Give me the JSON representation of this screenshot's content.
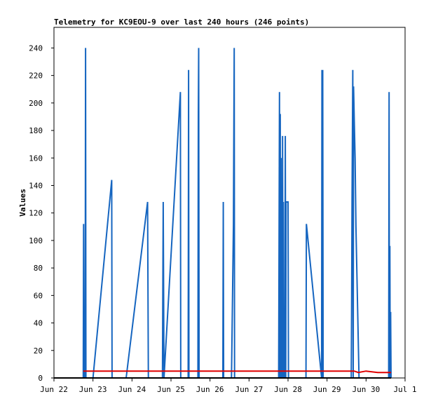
{
  "chart_data": {
    "type": "line",
    "title": "Telemetry for KC9EOU-9 over last 240 hours (246 points)",
    "xlabel": "",
    "ylabel": "Values",
    "xlim": [
      "Jun 22",
      "Jul 1"
    ],
    "ylim": [
      0,
      255
    ],
    "x_ticks": [
      "Jun 22",
      "Jun 23",
      "Jun 24",
      "Jun 25",
      "Jun 26",
      "Jun 27",
      "Jun 28",
      "Jun 29",
      "Jun 30",
      "Jul 1"
    ],
    "y_ticks": [
      0,
      20,
      40,
      60,
      80,
      100,
      120,
      140,
      160,
      180,
      200,
      220,
      240
    ],
    "grid": false,
    "series": [
      {
        "color": "#1565c0",
        "points": [
          [
            0.75,
            0
          ],
          [
            0.76,
            112
          ],
          [
            0.77,
            0
          ],
          [
            0.8,
            0
          ],
          [
            0.81,
            240
          ],
          [
            0.82,
            0
          ],
          [
            1.0,
            0
          ],
          [
            1.48,
            144
          ],
          [
            1.49,
            0
          ],
          [
            1.85,
            0
          ],
          [
            2.4,
            128
          ],
          [
            2.42,
            0
          ],
          [
            2.78,
            0
          ],
          [
            2.8,
            128
          ],
          [
            2.82,
            0
          ],
          [
            3.24,
            208
          ],
          [
            3.25,
            0
          ],
          [
            3.44,
            0
          ],
          [
            3.45,
            224
          ],
          [
            3.46,
            0
          ],
          [
            3.69,
            0
          ],
          [
            3.7,
            192
          ],
          [
            3.71,
            240
          ],
          [
            3.72,
            0
          ],
          [
            4.33,
            0
          ],
          [
            4.34,
            128
          ],
          [
            4.35,
            0
          ],
          [
            4.55,
            0
          ],
          [
            4.6,
            112
          ],
          [
            4.62,
            240
          ],
          [
            4.63,
            0
          ],
          [
            5.76,
            0
          ],
          [
            5.77,
            104
          ],
          [
            5.78,
            208
          ],
          [
            5.79,
            0
          ],
          [
            5.8,
            192
          ],
          [
            5.81,
            0
          ],
          [
            5.82,
            160
          ],
          [
            5.83,
            0
          ],
          [
            5.84,
            128
          ],
          [
            5.85,
            0
          ],
          [
            5.86,
            176
          ],
          [
            5.87,
            0
          ],
          [
            5.88,
            128
          ],
          [
            5.89,
            0
          ],
          [
            5.92,
            0
          ],
          [
            5.93,
            176
          ],
          [
            5.94,
            0
          ],
          [
            5.95,
            128
          ],
          [
            6.0,
            128
          ],
          [
            6.01,
            0
          ],
          [
            6.46,
            0
          ],
          [
            6.47,
            112
          ],
          [
            6.86,
            0
          ],
          [
            6.87,
            224
          ],
          [
            6.88,
            0
          ],
          [
            6.89,
            224
          ],
          [
            6.9,
            0
          ],
          [
            7.62,
            0
          ],
          [
            7.63,
            48
          ],
          [
            7.64,
            128
          ],
          [
            7.66,
            224
          ],
          [
            7.67,
            0
          ],
          [
            7.68,
            212
          ],
          [
            7.7,
            185
          ],
          [
            7.72,
            160
          ],
          [
            7.74,
            110
          ],
          [
            7.82,
            0
          ],
          [
            8.58,
            0
          ],
          [
            8.59,
            208
          ],
          [
            8.6,
            0
          ],
          [
            8.61,
            96
          ],
          [
            8.62,
            0
          ],
          [
            8.63,
            48
          ],
          [
            8.64,
            0
          ]
        ]
      },
      {
        "color": "#e00000",
        "points": [
          [
            0.75,
            5
          ],
          [
            7.7,
            5
          ],
          [
            7.8,
            4
          ],
          [
            8.0,
            5
          ],
          [
            8.3,
            4
          ],
          [
            8.64,
            4
          ]
        ]
      },
      {
        "color": "#000000",
        "points": [
          [
            0.0,
            0
          ],
          [
            8.64,
            0
          ]
        ]
      }
    ]
  }
}
